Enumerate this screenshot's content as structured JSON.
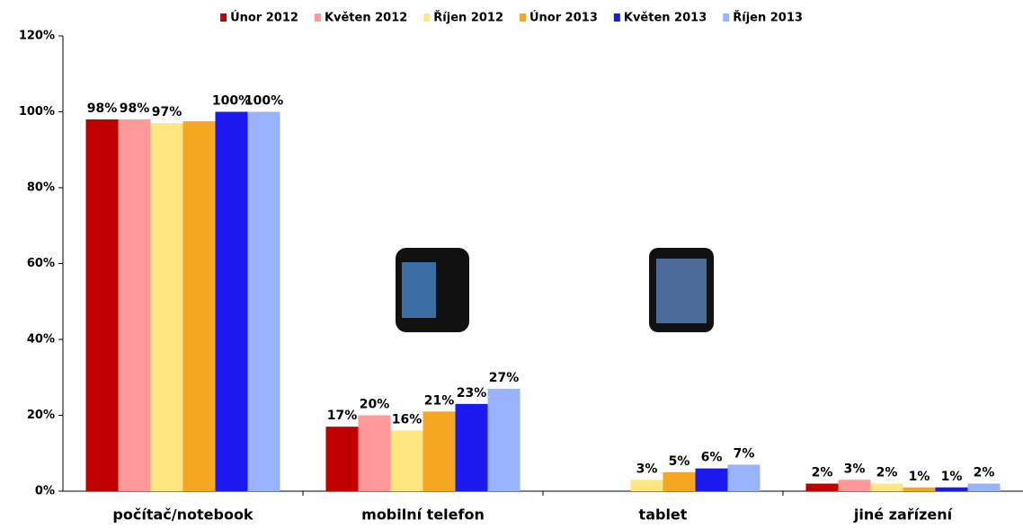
{
  "chart_data": {
    "type": "bar",
    "categories": [
      "počítač/notebook",
      "mobilní telefon",
      "tablet",
      "jiné zařízení"
    ],
    "series": [
      {
        "name": "Únor 2012",
        "color": "#c00000",
        "values": [
          98,
          17,
          null,
          2
        ],
        "value_labels": [
          "98%",
          "17%",
          null,
          "2%"
        ]
      },
      {
        "name": "Květen 2012",
        "color": "#ff9999",
        "values": [
          98,
          20,
          null,
          3
        ],
        "value_labels": [
          "98%",
          "20%",
          null,
          "3%"
        ]
      },
      {
        "name": "Říjen 2012",
        "color": "#ffe680",
        "values": [
          97,
          16,
          3,
          2
        ],
        "value_labels": [
          "97%",
          "16%",
          "3%",
          "2%"
        ]
      },
      {
        "name": "Únor 2013",
        "color": "#f5a623",
        "values": [
          97.5,
          21,
          5,
          1
        ],
        "value_labels": [
          null,
          "21%",
          "5%",
          "1%"
        ]
      },
      {
        "name": "Květen 2013",
        "color": "#1a1aee",
        "values": [
          100,
          23,
          6,
          1
        ],
        "value_labels": [
          "100%",
          "23%",
          "6%",
          "1%"
        ]
      },
      {
        "name": "Říjen 2013",
        "color": "#99b3ff",
        "values": [
          100,
          27,
          7,
          2
        ],
        "value_labels": [
          "100%",
          "27%",
          "7%",
          "2%"
        ]
      }
    ],
    "ylim": [
      0,
      120
    ],
    "yticks": [
      {
        "value": 0,
        "label": "0%"
      },
      {
        "value": 20,
        "label": "20%"
      },
      {
        "value": 40,
        "label": "40%"
      },
      {
        "value": 60,
        "label": "60%"
      },
      {
        "value": 80,
        "label": "80%"
      },
      {
        "value": 100,
        "label": "100%"
      },
      {
        "value": 120,
        "label": "120%"
      }
    ],
    "legend": "top"
  }
}
